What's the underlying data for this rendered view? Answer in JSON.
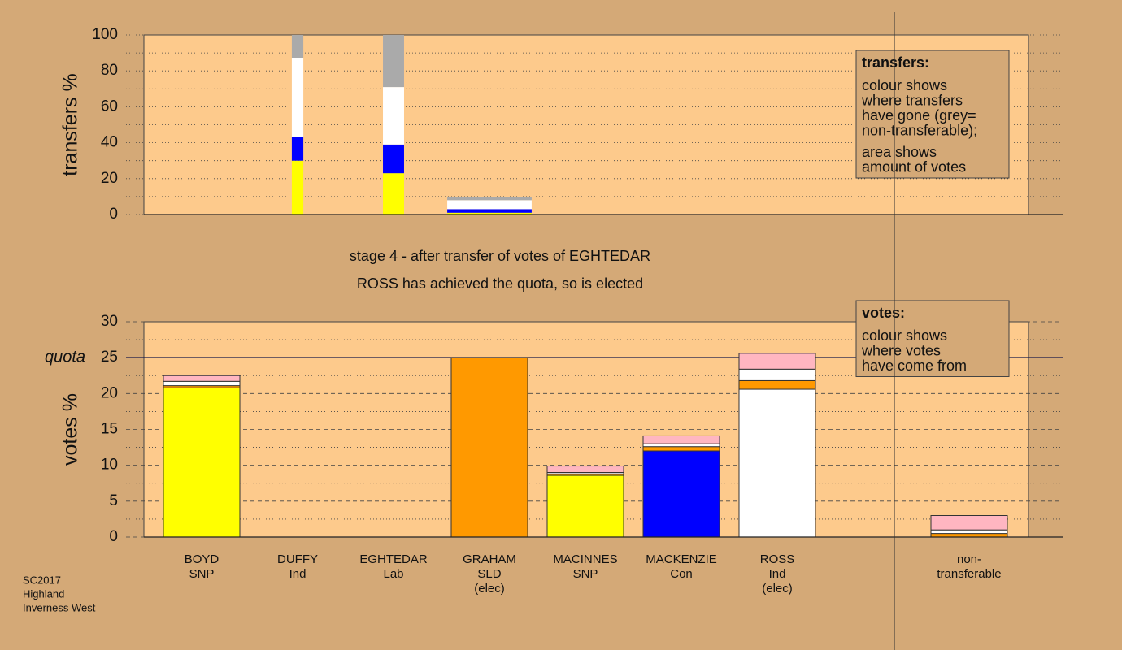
{
  "chart_data": [
    {
      "type": "bar",
      "stacked": true,
      "ylabel": "transfers %",
      "ylim": [
        0,
        100
      ],
      "yticks": [
        0,
        20,
        40,
        60,
        80,
        100
      ],
      "grid": true,
      "amounts": [
        null,
        0.6,
        1.1,
        4.4,
        null,
        null,
        null,
        null,
        null
      ],
      "series": [
        {
          "color": "#ffff00",
          "values": [
            null,
            30,
            23,
            1,
            null,
            null,
            null,
            null,
            null
          ]
        },
        {
          "color": "#0000ff",
          "values": [
            null,
            13,
            16,
            2,
            null,
            null,
            null,
            null,
            null
          ]
        },
        {
          "color": "#ffffff",
          "values": [
            null,
            44,
            32,
            5,
            null,
            null,
            null,
            null,
            null
          ]
        },
        {
          "color": "#aaaaaa",
          "values": [
            null,
            13,
            29,
            1.5,
            null,
            null,
            null,
            null,
            null
          ]
        }
      ],
      "note": {
        "title": "transfers:",
        "lines": [
          "colour shows",
          "where transfers",
          "have gone (grey=",
          "non-transferable);",
          "area shows",
          "amount of votes"
        ]
      }
    },
    {
      "type": "bar",
      "stacked": true,
      "ylabel": "votes %",
      "ylim": [
        0,
        30
      ],
      "yticks": [
        0,
        5,
        10,
        15,
        20,
        25,
        30
      ],
      "grid": true,
      "quota": {
        "value": 25,
        "label": "quota"
      },
      "categories": [
        [
          "BOYD",
          "SNP"
        ],
        [
          "DUFFY",
          "Ind"
        ],
        [
          "EGHTEDAR",
          "Lab"
        ],
        [
          "GRAHAM",
          "SLD",
          "(elec)"
        ],
        [
          "MACINNES",
          "SNP"
        ],
        [
          "MACKENZIE",
          "Con"
        ],
        [
          "ROSS",
          "Ind",
          "(elec)"
        ],
        null,
        [
          "non-",
          "transferable"
        ]
      ],
      "series": [
        {
          "colors": [
            "#ffff00",
            "#ffffff",
            "#ffb6c1",
            "#ff9900",
            "#ffff00",
            "#0000ff",
            "#ffffff",
            null,
            "#ffffff"
          ],
          "values": [
            20.8,
            0,
            0,
            25,
            8.6,
            12,
            20.6,
            null,
            0
          ]
        },
        {
          "color": "#ff9900",
          "values": [
            0.3,
            0,
            0,
            0,
            0.2,
            0.6,
            1.2,
            null,
            0.5
          ]
        },
        {
          "color": "#ffffff",
          "values": [
            0.6,
            0,
            0,
            0,
            0.2,
            0.4,
            1.6,
            null,
            0.5
          ]
        },
        {
          "color": "#ffb6c1",
          "values": [
            0.8,
            0,
            0,
            0,
            0.9,
            1.1,
            2.2,
            null,
            2
          ]
        }
      ],
      "note": {
        "title": "votes:",
        "lines": [
          "colour shows",
          "where votes",
          "have come from"
        ]
      }
    }
  ],
  "stage": [
    "stage 4 - after transfer of votes of EGHTEDAR",
    "ROSS has achieved the quota, so is elected"
  ],
  "footer": [
    "SC2017",
    "Highland",
    "Inverness West"
  ]
}
